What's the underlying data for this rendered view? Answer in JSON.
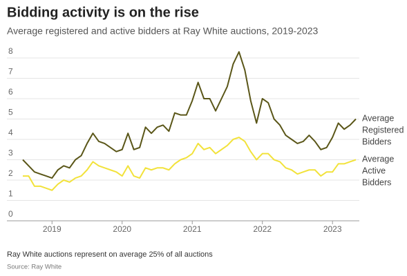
{
  "chart_data": {
    "type": "line",
    "title": "Bidding activity is on the rise",
    "subtitle": "Average registered and active bidders at Ray White auctions, 2019-2023",
    "note": "Ray White auctions represent on average 25% of all auctions",
    "source": "Source: Ray White",
    "categories": [
      null,
      null,
      null,
      null,
      null,
      "2019",
      null,
      null,
      null,
      null,
      null,
      null,
      null,
      null,
      null,
      null,
      null,
      "2020",
      null,
      null,
      null,
      null,
      null,
      null,
      null,
      null,
      null,
      null,
      null,
      "2021",
      null,
      null,
      null,
      null,
      null,
      null,
      null,
      null,
      null,
      null,
      null,
      "2022",
      null,
      null,
      null,
      null,
      null,
      null,
      null,
      null,
      null,
      null,
      null,
      "2023",
      null,
      null,
      null,
      null
    ],
    "series": [
      {
        "name": "Average Registered Bidders",
        "color": "#5a5618",
        "values": [
          3.0,
          2.7,
          2.4,
          2.3,
          2.2,
          2.1,
          2.5,
          2.7,
          2.6,
          3.0,
          3.2,
          3.8,
          4.3,
          3.9,
          3.8,
          3.6,
          3.4,
          3.5,
          4.3,
          3.5,
          3.6,
          4.6,
          4.3,
          4.6,
          4.7,
          4.4,
          5.3,
          5.2,
          5.2,
          5.9,
          6.8,
          6.0,
          6.0,
          5.4,
          6.0,
          6.6,
          7.7,
          8.3,
          7.4,
          5.9,
          4.8,
          6.0,
          5.8,
          5.0,
          4.7,
          4.2,
          4.0,
          3.8,
          3.9,
          4.2,
          3.9,
          3.5,
          3.6,
          4.1,
          4.8,
          4.5,
          4.7,
          5.0
        ]
      },
      {
        "name": "Average Active Bidders",
        "color": "#f2e23a",
        "values": [
          2.2,
          2.2,
          1.7,
          1.7,
          1.6,
          1.5,
          1.8,
          2.0,
          1.9,
          2.1,
          2.2,
          2.5,
          2.9,
          2.7,
          2.6,
          2.5,
          2.4,
          2.2,
          2.7,
          2.2,
          2.1,
          2.6,
          2.5,
          2.6,
          2.6,
          2.5,
          2.8,
          3.0,
          3.1,
          3.3,
          3.8,
          3.5,
          3.6,
          3.3,
          3.5,
          3.7,
          4.0,
          4.1,
          3.9,
          3.4,
          3.0,
          3.3,
          3.3,
          3.0,
          2.9,
          2.6,
          2.5,
          2.3,
          2.4,
          2.5,
          2.5,
          2.2,
          2.4,
          2.4,
          2.8,
          2.8,
          2.9,
          3.0
        ]
      }
    ],
    "ylim": [
      0,
      8
    ],
    "yticks": [
      0,
      1,
      2,
      3,
      4,
      5,
      6,
      7,
      8
    ],
    "grid": true
  }
}
